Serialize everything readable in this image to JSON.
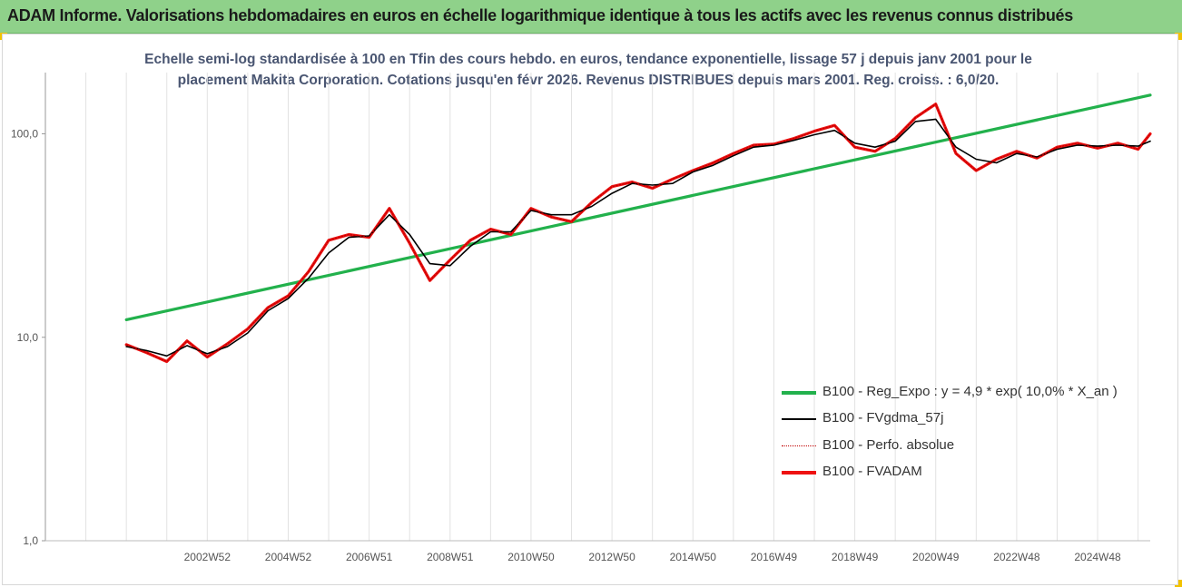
{
  "banner": {
    "title": "ADAM Informe. Valorisations hebdomadaires en euros en échelle logarithmique identique à tous les actifs avec les revenus connus distribués",
    "bg_color": "#8fd18a",
    "corner_color": "#f2c200"
  },
  "chart_data": {
    "type": "line",
    "subtitle_line1": "Echelle semi-log standardisée à 100 en Tfin des cours hebdo. en euros, tendance exponentielle, lissage 57 j depuis janv 2001 pour le",
    "subtitle_line2": "placement Makita Corporation. Cotations jusqu'en févr 2026. Revenus DISTRIBUES depuis mars 2001. Reg. croiss. : 6,0/20.",
    "y_scale": "log",
    "ylim": [
      1,
      200
    ],
    "y_ticks": [
      1,
      10,
      100
    ],
    "y_tick_labels": [
      "1,0",
      "10,0",
      "100,0"
    ],
    "xlim": [
      1999.0,
      2026.3
    ],
    "x_ticks": [
      2003.0,
      2005.0,
      2007.0,
      2009.0,
      2011.0,
      2013.0,
      2015.0,
      2017.0,
      2019.0,
      2021.0,
      2023.0,
      2025.0
    ],
    "x_tick_labels": [
      "2002W52",
      "2004W52",
      "2006W51",
      "2008W51",
      "2010W50",
      "2012W50",
      "2014W50",
      "2016W49",
      "2018W49",
      "2020W49",
      "2022W48",
      "2024W48"
    ],
    "grid": "vertical",
    "legend_position": "bottom-right",
    "series": [
      {
        "name": "B100 - Reg_Expo : y = 4,9 * exp( 10,0% *  X_an )",
        "color": "#22b14c",
        "style": "solid-thick",
        "x": [
          2001.0,
          2026.3
        ],
        "y": [
          12.2,
          155
        ]
      },
      {
        "name": "B100 - FVgdma_57j",
        "color": "#000000",
        "style": "solid-thin",
        "x": [
          2001.0,
          2001.5,
          2002.0,
          2002.5,
          2003.0,
          2003.5,
          2004.0,
          2004.5,
          2005.0,
          2005.5,
          2006.0,
          2006.5,
          2007.0,
          2007.5,
          2008.0,
          2008.5,
          2009.0,
          2009.5,
          2010.0,
          2010.5,
          2011.0,
          2011.5,
          2012.0,
          2012.5,
          2013.0,
          2013.5,
          2014.0,
          2014.5,
          2015.0,
          2015.5,
          2016.0,
          2016.5,
          2017.0,
          2017.5,
          2018.0,
          2018.5,
          2019.0,
          2019.5,
          2020.0,
          2020.5,
          2021.0,
          2021.5,
          2022.0,
          2022.5,
          2023.0,
          2023.5,
          2024.0,
          2024.5,
          2025.0,
          2025.5,
          2026.0,
          2026.3
        ],
        "y": [
          9.0,
          8.6,
          8.1,
          9.1,
          8.3,
          9.0,
          10.5,
          13.5,
          15.5,
          19.5,
          26.0,
          31.0,
          31.5,
          40.0,
          32.0,
          23.0,
          22.5,
          28.0,
          33.0,
          33.0,
          42.0,
          40.0,
          40.0,
          44.0,
          51.0,
          57.0,
          56.0,
          57.0,
          65.0,
          70.0,
          78.0,
          86.0,
          88.0,
          93.0,
          99.0,
          104.0,
          90.0,
          86.0,
          92.0,
          115.0,
          118.0,
          86.0,
          75.0,
          72.0,
          80.0,
          77.0,
          84.0,
          88.0,
          87.0,
          88.0,
          87.0,
          92.0
        ]
      },
      {
        "name": "B100 - Perfo. absolue",
        "color": "#c00000",
        "style": "dotted",
        "x": [
          2001.0,
          2001.5,
          2002.0,
          2002.5,
          2003.0,
          2003.5,
          2004.0,
          2004.5,
          2005.0,
          2005.5,
          2006.0,
          2006.5,
          2007.0,
          2007.5,
          2008.0,
          2008.5,
          2009.0,
          2009.5,
          2010.0,
          2010.5,
          2011.0,
          2011.5,
          2012.0,
          2012.5,
          2013.0,
          2013.5,
          2014.0,
          2014.5,
          2015.0,
          2015.5,
          2016.0,
          2016.5,
          2017.0,
          2017.5,
          2018.0,
          2018.5,
          2019.0,
          2019.5,
          2020.0,
          2020.5,
          2021.0,
          2021.5,
          2022.0,
          2022.5,
          2023.0,
          2023.5,
          2024.0,
          2024.5,
          2025.0,
          2025.5,
          2026.0,
          2026.3
        ],
        "y": [
          9.2,
          8.4,
          7.6,
          9.6,
          8.0,
          9.3,
          11.0,
          14.0,
          16.0,
          21.0,
          30.0,
          32.0,
          31.0,
          43.0,
          29.0,
          19.0,
          24.0,
          30.0,
          34.0,
          32.0,
          43.0,
          39.0,
          37.0,
          46.0,
          55.0,
          58.0,
          54.0,
          60.0,
          66.0,
          72.0,
          80.0,
          88.0,
          89.0,
          95.0,
          103.0,
          110.0,
          86.0,
          82.0,
          95.0,
          120.0,
          140.0,
          80.0,
          66.0,
          75.0,
          82.0,
          76.0,
          86.0,
          90.0,
          85.0,
          90.0,
          84.0,
          100.0
        ]
      },
      {
        "name": "B100 - FVADAM",
        "color": "#ee1111",
        "style": "solid-thick",
        "x": [
          2001.0,
          2001.5,
          2002.0,
          2002.5,
          2003.0,
          2003.5,
          2004.0,
          2004.5,
          2005.0,
          2005.5,
          2006.0,
          2006.5,
          2007.0,
          2007.5,
          2008.0,
          2008.5,
          2009.0,
          2009.5,
          2010.0,
          2010.5,
          2011.0,
          2011.5,
          2012.0,
          2012.5,
          2013.0,
          2013.5,
          2014.0,
          2014.5,
          2015.0,
          2015.5,
          2016.0,
          2016.5,
          2017.0,
          2017.5,
          2018.0,
          2018.5,
          2019.0,
          2019.5,
          2020.0,
          2020.5,
          2021.0,
          2021.5,
          2022.0,
          2022.5,
          2023.0,
          2023.5,
          2024.0,
          2024.5,
          2025.0,
          2025.5,
          2026.0,
          2026.3
        ],
        "y": [
          9.2,
          8.4,
          7.6,
          9.6,
          8.0,
          9.3,
          11.0,
          14.0,
          16.0,
          21.0,
          30.0,
          32.0,
          31.0,
          43.0,
          29.0,
          19.0,
          24.0,
          30.0,
          34.0,
          32.0,
          43.0,
          39.0,
          37.0,
          46.0,
          55.0,
          58.0,
          54.0,
          60.0,
          66.0,
          72.0,
          80.0,
          88.0,
          89.0,
          95.0,
          103.0,
          110.0,
          86.0,
          82.0,
          95.0,
          120.0,
          140.0,
          80.0,
          66.0,
          75.0,
          82.0,
          76.0,
          86.0,
          90.0,
          85.0,
          90.0,
          84.0,
          100.0
        ]
      }
    ]
  }
}
